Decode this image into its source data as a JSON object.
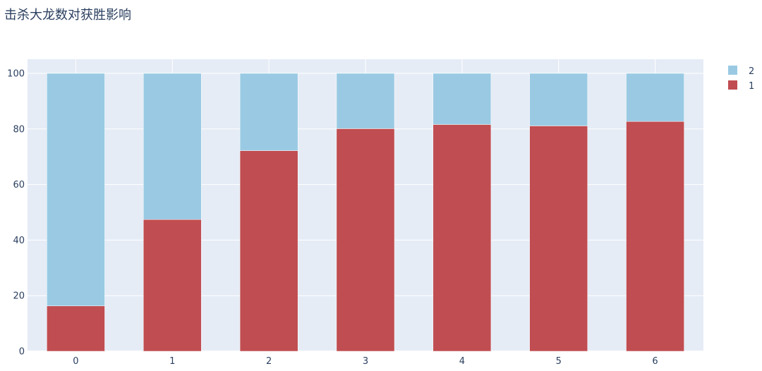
{
  "chart_data": {
    "type": "bar",
    "barmode": "stack",
    "title": "击杀大龙数对获胜影响",
    "xlabel": "",
    "ylabel": "",
    "categories": [
      "0",
      "1",
      "2",
      "3",
      "4",
      "5",
      "6"
    ],
    "ylim": [
      0,
      100
    ],
    "yticks": [
      0,
      20,
      40,
      60,
      80,
      100
    ],
    "grid": true,
    "legend_position": "top-right",
    "series": [
      {
        "name": "1",
        "color": "#c04d51",
        "values": [
          16.3,
          47.4,
          72.2,
          80.1,
          81.6,
          81.1,
          82.7
        ]
      },
      {
        "name": "2",
        "color": "#9acae3",
        "values": [
          83.7,
          52.6,
          27.8,
          19.9,
          18.4,
          18.9,
          17.3
        ]
      }
    ],
    "legend_order": [
      "2",
      "1"
    ]
  }
}
